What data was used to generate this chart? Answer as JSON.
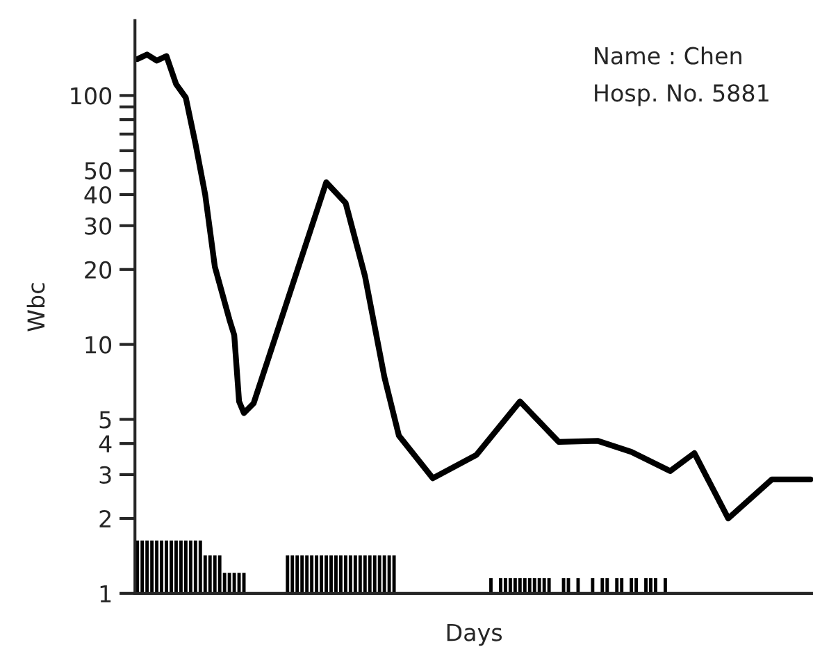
{
  "chart_data": {
    "type": "line",
    "xlabel": "Days",
    "ylabel": "Wbc",
    "log": "y",
    "grid": false,
    "marker": "none",
    "line_style": "solid",
    "categories": [
      null,
      null,
      null,
      null,
      null,
      null,
      null,
      null,
      null,
      null,
      null,
      null,
      null,
      null,
      null,
      null,
      null,
      null,
      null,
      null,
      null,
      null,
      null,
      null,
      null,
      null,
      null,
      null,
      null,
      null,
      null,
      null,
      null,
      null,
      null,
      null,
      null,
      null,
      null,
      null,
      null,
      null,
      null,
      null,
      null,
      null,
      null,
      null,
      null,
      null,
      null,
      null,
      null,
      null,
      null,
      null,
      null,
      null,
      null,
      null,
      null,
      null,
      null,
      null,
      null,
      null,
      null,
      null,
      null,
      null,
      null,
      null,
      null,
      null,
      null,
      null,
      null,
      null,
      null,
      null,
      null,
      null,
      null,
      null,
      null,
      null,
      null,
      null,
      null,
      null,
      null,
      null,
      null,
      null,
      null,
      null,
      null,
      null,
      null,
      null,
      null,
      null,
      null,
      null,
      null,
      null,
      null,
      null,
      null,
      null,
      null,
      null,
      null,
      null,
      null,
      null,
      null,
      null,
      null,
      null,
      null,
      null,
      null,
      null,
      null,
      null,
      null,
      null,
      null,
      null,
      null,
      null,
      null,
      null,
      null,
      null,
      null,
      null,
      null,
      null
    ],
    "ylim": [
      1,
      200
    ],
    "yticks": [
      1,
      2,
      3,
      4,
      5,
      10,
      20,
      30,
      40,
      50,
      {
        "value": 60,
        "label": null
      },
      {
        "value": 70,
        "label": null
      },
      {
        "value": 80,
        "label": null
      },
      {
        "value": 90,
        "label": null
      },
      100
    ],
    "annotations": [
      "Name : Chen",
      "Hosp. No. 5881"
    ],
    "series": [
      {
        "color": "#000000",
        "values": [
          140,
          null,
          146,
          null,
          138,
          null,
          144,
          null,
          111,
          null,
          98,
          null,
          64,
          null,
          40,
          null,
          20.5,
          null,
          null,
          12.6,
          10.9,
          5.9,
          5.3,
          null,
          5.8,
          null,
          null,
          null,
          null,
          null,
          null,
          null,
          null,
          null,
          null,
          null,
          null,
          null,
          null,
          44.8,
          null,
          null,
          null,
          37,
          null,
          null,
          null,
          18.8,
          null,
          null,
          null,
          7.4,
          null,
          null,
          4.3,
          null,
          null,
          null,
          null,
          null,
          null,
          2.9,
          null,
          null,
          null,
          null,
          null,
          null,
          null,
          null,
          3.6,
          null,
          null,
          null,
          null,
          null,
          null,
          null,
          null,
          5.9,
          null,
          null,
          null,
          null,
          null,
          null,
          null,
          4.06,
          null,
          null,
          null,
          null,
          null,
          null,
          null,
          4.1,
          null,
          null,
          null,
          null,
          null,
          null,
          3.7,
          null,
          null,
          null,
          null,
          null,
          null,
          null,
          3.1,
          null,
          null,
          null,
          null,
          3.66,
          null,
          null,
          null,
          null,
          null,
          null,
          2.0,
          null,
          null,
          null,
          null,
          null,
          null,
          null,
          null,
          2.87,
          null,
          null,
          null,
          null,
          null,
          null,
          null,
          2.87
        ]
      },
      {
        "type": "bar",
        "color": "#000000",
        "values": [
          1.63,
          1.63,
          1.63,
          1.63,
          1.63,
          1.63,
          1.63,
          1.63,
          1.63,
          1.63,
          1.63,
          1.63,
          1.63,
          1.63,
          1.42,
          1.42,
          1.42,
          1.42,
          1.21,
          1.21,
          1.21,
          1.21,
          1.21,
          null,
          null,
          null,
          null,
          null,
          null,
          null,
          null,
          1.42,
          1.42,
          1.42,
          1.42,
          1.42,
          1.42,
          1.42,
          1.42,
          1.42,
          1.42,
          1.42,
          1.42,
          1.42,
          1.42,
          1.42,
          1.42,
          1.42,
          1.42,
          1.42,
          1.42,
          1.42,
          1.42,
          1.42,
          null,
          null,
          null,
          null,
          null,
          null,
          null,
          null,
          null,
          null,
          null,
          null,
          null,
          null,
          null,
          null,
          null,
          null,
          null,
          1.15,
          null,
          1.15,
          1.15,
          1.15,
          1.15,
          1.15,
          1.15,
          1.15,
          1.15,
          1.15,
          1.15,
          1.15,
          null,
          null,
          1.15,
          1.15,
          null,
          1.15,
          null,
          null,
          1.15,
          null,
          1.15,
          1.15,
          null,
          1.15,
          1.15,
          null,
          1.15,
          1.15,
          null,
          1.15,
          1.15,
          1.15,
          null,
          1.15,
          null,
          null,
          null,
          null,
          null,
          null,
          null,
          null,
          null,
          null,
          null,
          null,
          null,
          null,
          null,
          null,
          null,
          null,
          null,
          null,
          null,
          null,
          null,
          null,
          null,
          null,
          null,
          null,
          null,
          null
        ]
      }
    ]
  }
}
